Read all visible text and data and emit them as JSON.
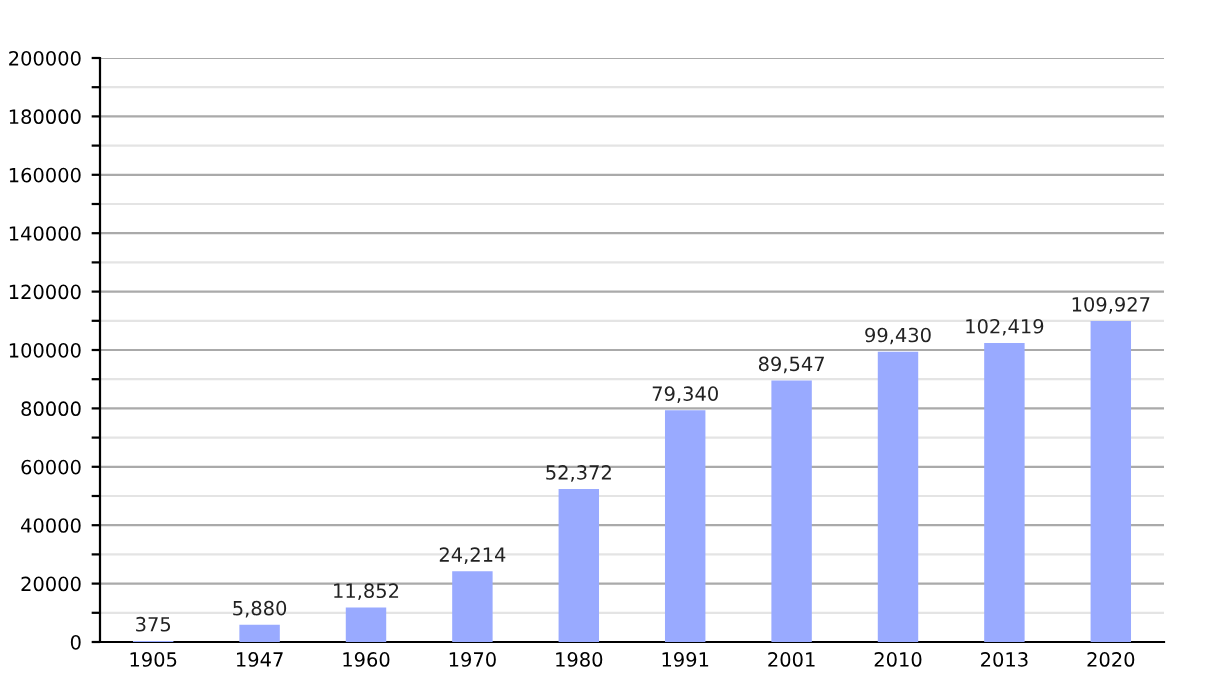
{
  "chart_data": {
    "type": "bar",
    "categories": [
      "1905",
      "1947",
      "1960",
      "1970",
      "1980",
      "1991",
      "2001",
      "2010",
      "2013",
      "2020"
    ],
    "values": [
      375,
      5880,
      11852,
      24214,
      52372,
      79340,
      89547,
      99430,
      102419,
      109927
    ],
    "value_labels": [
      "375",
      "5,880",
      "11,852",
      "24,214",
      "52,372",
      "79,340",
      "89,547",
      "99,430",
      "102,419",
      "109,927"
    ],
    "color": "#99aaff",
    "ylim": [
      0,
      200000
    ],
    "yticks": [
      0,
      {
        "value": 10000,
        "label": null
      },
      20000,
      {
        "value": 30000,
        "label": null
      },
      40000,
      {
        "value": 50000,
        "label": null
      },
      60000,
      {
        "value": 70000,
        "label": null
      },
      80000,
      {
        "value": 90000,
        "label": null
      },
      100000,
      {
        "value": 110000,
        "label": null
      },
      120000,
      {
        "value": 130000,
        "label": null
      },
      140000,
      {
        "value": 150000,
        "label": null
      },
      160000,
      {
        "value": 170000,
        "label": null
      },
      180000,
      {
        "value": 190000,
        "label": null
      },
      200000
    ],
    "grid": "y"
  }
}
